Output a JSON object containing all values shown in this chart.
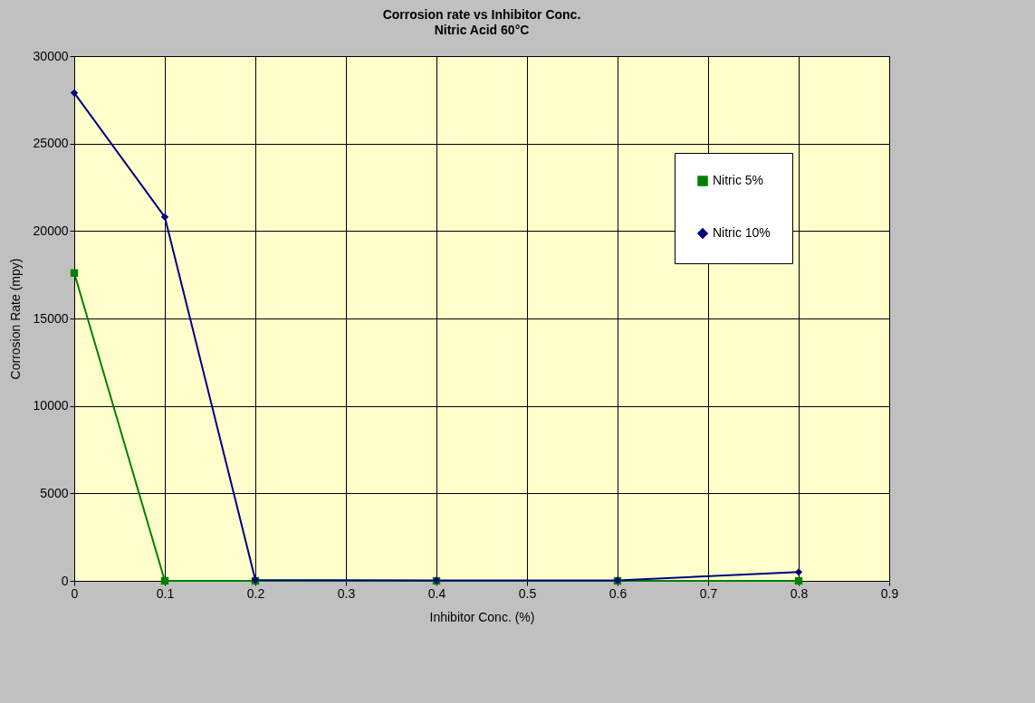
{
  "chart_data": {
    "type": "line",
    "title": "Corrosion rate vs Inhibitor Conc.",
    "subtitle": "Nitric Acid 60°C",
    "xlabel": "Inhibitor Conc. (%)",
    "ylabel": "Corrosion Rate (mpy)",
    "x": [
      0,
      0.1,
      0.2,
      0.4,
      0.6,
      0.8
    ],
    "series": [
      {
        "name": "Nitric 5%",
        "color": "#008000",
        "marker": "square",
        "values": [
          17600,
          0,
          0,
          0,
          0,
          0
        ]
      },
      {
        "name": "Nitric 10%",
        "color": "#000080",
        "marker": "diamond",
        "values": [
          27900,
          20800,
          50,
          30,
          30,
          500
        ]
      }
    ],
    "xlim": [
      0,
      0.9
    ],
    "xticks": [
      0,
      0.1,
      0.2,
      0.3,
      0.4,
      0.5,
      0.6,
      0.7,
      0.8,
      0.9
    ],
    "ylim": [
      0,
      30000
    ],
    "yticks": [
      0,
      5000,
      10000,
      15000,
      20000,
      25000,
      30000
    ],
    "grid": true,
    "legend": "top right"
  }
}
